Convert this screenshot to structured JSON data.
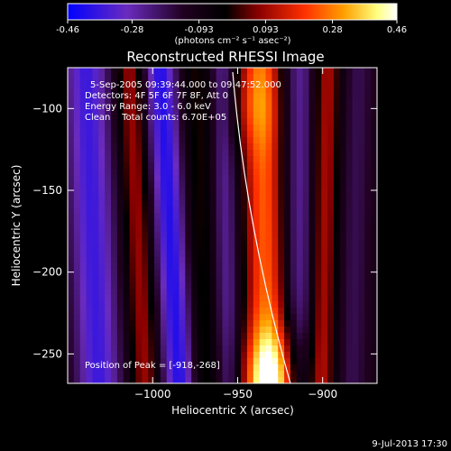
{
  "colorbar": {
    "tick_labels": [
      "-0.46",
      "-0.28",
      "-0.093",
      "0.093",
      "0.28",
      "0.46"
    ],
    "unit_label": "(photons cm⁻² s⁻¹ asec⁻²)",
    "range": [
      -0.46,
      0.46
    ],
    "colors": [
      "#0000ff",
      "#6a2bbf",
      "#200020",
      "#000000",
      "#8a0000",
      "#ff3000",
      "#ffa000",
      "#ffff80",
      "#ffffff"
    ]
  },
  "chart_data": {
    "type": "heatmap",
    "title": "Reconstructed RHESSI Image",
    "xlabel": "Heliocentric X (arcsec)",
    "ylabel": "Heliocentric Y (arcsec)",
    "xlim": [
      -1050,
      -868
    ],
    "ylim": [
      -268,
      -75
    ],
    "xticks": [
      -1000,
      -950,
      -900
    ],
    "xtick_labels": [
      "−1000",
      "−950",
      "−900"
    ],
    "yticks": [
      -250,
      -200,
      -150,
      -100
    ],
    "ytick_labels": [
      "−250",
      "−200",
      "−150",
      "−100"
    ],
    "annotations": [
      "5-Sep-2005 09:39:44.000 to 09:47:52.000",
      "Detectors: 4F 5F 6F 7F 8F, Att 0",
      "Energy Range: 3.0 - 6.0 keV",
      "Clean    Total counts: 6.70E+05"
    ],
    "peak_label": "Position of Peak = [-918,-268]",
    "peak_position": [
      -918,
      -268
    ]
  },
  "footer": {
    "timestamp": "9-Jul-2013 17:30"
  }
}
